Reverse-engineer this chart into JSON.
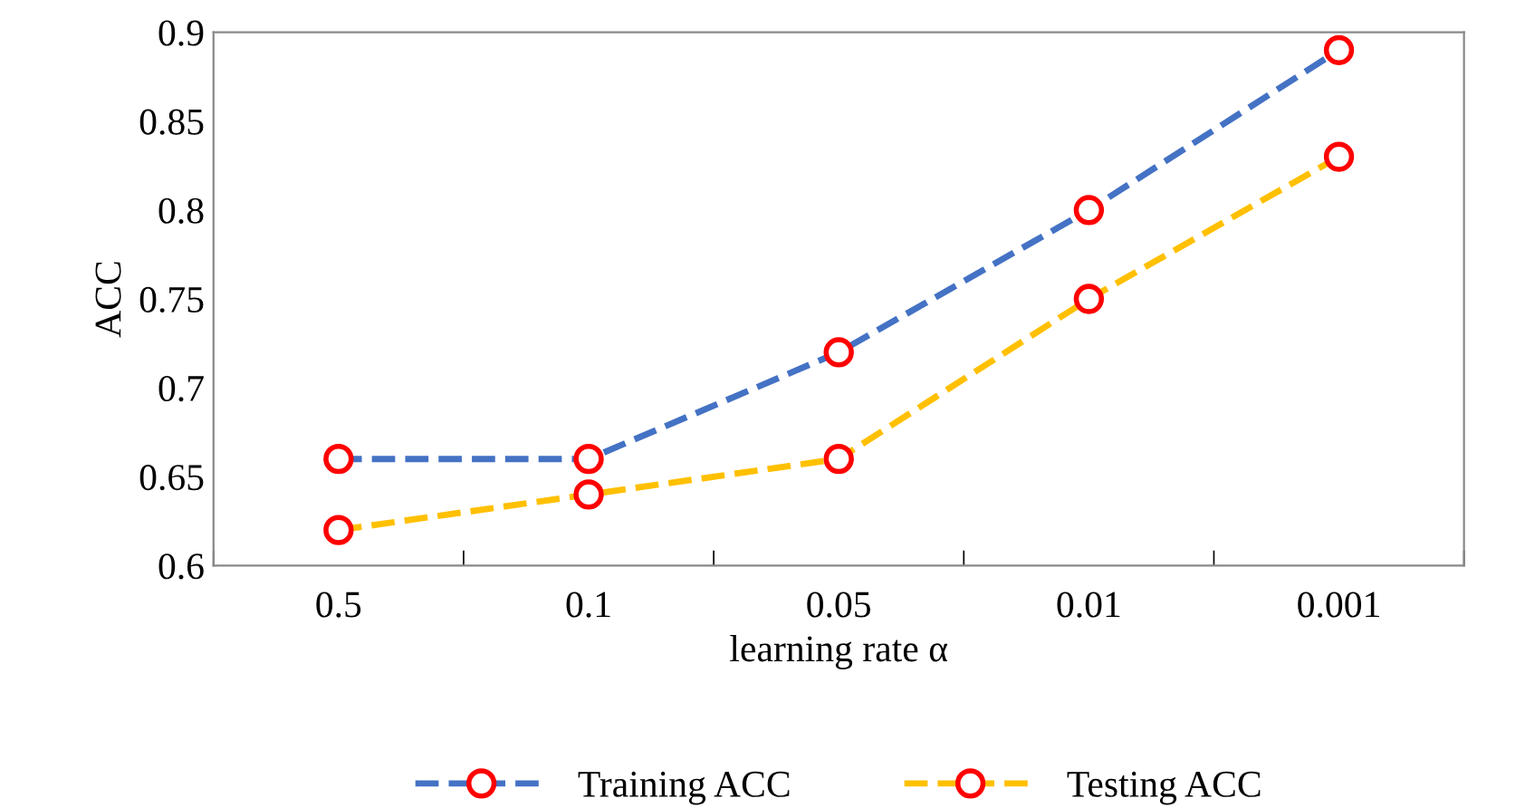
{
  "chart_data": {
    "type": "line",
    "xlabel": "learning rate α",
    "ylabel": "ACC",
    "categories": [
      "0.5",
      "0.1",
      "0.05",
      "0.01",
      "0.001"
    ],
    "series": [
      {
        "name": "Training ACC",
        "color": "#4472c4",
        "values": [
          0.66,
          0.66,
          0.72,
          0.8,
          0.89
        ]
      },
      {
        "name": "Testing ACC",
        "color": "#ffc000",
        "values": [
          0.62,
          0.64,
          0.66,
          0.75,
          0.83
        ]
      }
    ],
    "ylim": [
      0.6,
      0.9
    ],
    "yticks": [
      0.6,
      0.65,
      0.7,
      0.75,
      0.8,
      0.85,
      0.9
    ],
    "grid": false,
    "legend": "bottom",
    "marker": "circle",
    "line_style": "dashed"
  }
}
